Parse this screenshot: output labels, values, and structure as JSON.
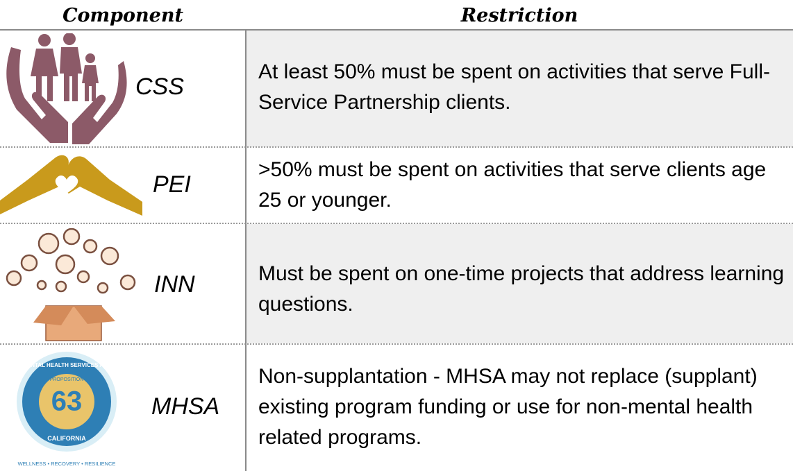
{
  "table": {
    "header": [
      "Component",
      "Restriction"
    ],
    "rows": [
      [
        "CSS",
        "At least 50% must be spent on activities that serve Full-Service Partnership clients."
      ],
      [
        "PEI",
        ">50% must be spent on activities that serve clients age 25 or younger."
      ],
      [
        "INN",
        "Must be spent on one-time projects that address learning questions."
      ],
      [
        "MHSA",
        "Non-supplantation - MHSA may not replace (supplant) existing program funding or use for non-mental health related programs."
      ]
    ]
  },
  "logo": {
    "act": "MENTAL HEALTH SERVICES ACT",
    "proposition": "PROPOSITION",
    "number": "63",
    "state": "CALIFORNIA",
    "tagline": "WELLNESS • RECOVERY • RESILIENCE"
  }
}
